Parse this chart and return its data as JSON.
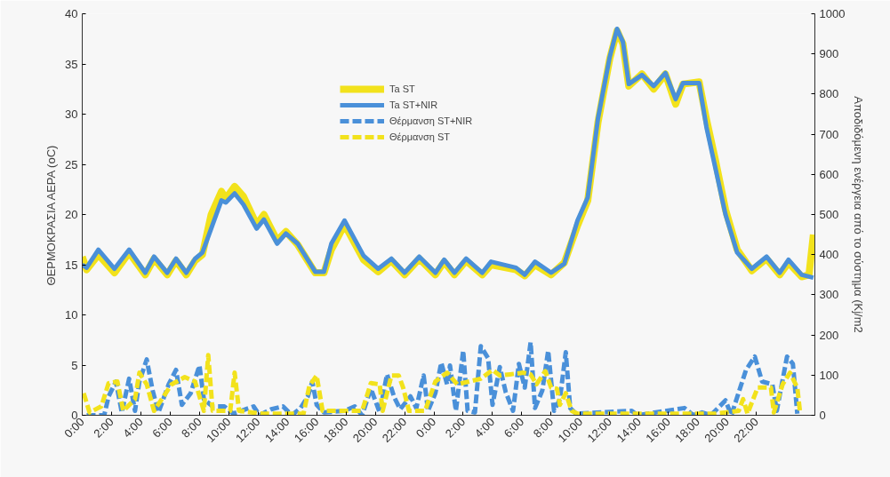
{
  "chart_data": {
    "type": "line",
    "ylabel": "ΘΕΡΜΟΚΡΑΣΙΑ ΑΕΡΑ (oC)",
    "y2label": "Αποδιδόμενη ενέργεια από το σύστημα (Kj/m2",
    "xlim": [
      "2000-01-01T00:00",
      "2000-01-03T02:00"
    ],
    "ylim": [
      0,
      40
    ],
    "y2lim": [
      0,
      1000
    ],
    "xticks": [
      {
        "value": "2000-01-01T00:00",
        "label": "0:00"
      },
      {
        "value": "2000-01-01T02:00",
        "label": "2:00"
      },
      {
        "value": "2000-01-01T04:00",
        "label": "4:00"
      },
      {
        "value": "2000-01-01T06:00",
        "label": "6:00"
      },
      {
        "value": "2000-01-01T08:00",
        "label": "8:00"
      },
      {
        "value": "2000-01-01T10:00",
        "label": "10:00"
      },
      {
        "value": "2000-01-01T12:00",
        "label": "12:00"
      },
      {
        "value": "2000-01-01T14:00",
        "label": "14:00"
      },
      {
        "value": "2000-01-01T16:00",
        "label": "16:00"
      },
      {
        "value": "2000-01-01T18:00",
        "label": "18:00"
      },
      {
        "value": "2000-01-01T20:00",
        "label": "20:00"
      },
      {
        "value": "2000-01-01T22:00",
        "label": "22:00"
      },
      {
        "value": "2000-01-02T00:00",
        "label": "0:00"
      },
      {
        "value": "2000-01-02T02:00",
        "label": "2:00"
      },
      {
        "value": "2000-01-02T04:00",
        "label": "4:00"
      },
      {
        "value": "2000-01-02T06:00",
        "label": "6:00"
      },
      {
        "value": "2000-01-02T08:00",
        "label": "8:00"
      },
      {
        "value": "2000-01-02T10:00",
        "label": "10:00"
      },
      {
        "value": "2000-01-02T12:00",
        "label": "12:00"
      },
      {
        "value": "2000-01-02T14:00",
        "label": "14:00"
      },
      {
        "value": "2000-01-02T16:00",
        "label": "16:00"
      },
      {
        "value": "2000-01-02T18:00",
        "label": "18:00"
      },
      {
        "value": "2000-01-02T20:00",
        "label": "20:00"
      },
      {
        "value": "2000-01-02T22:00",
        "label": "22:00"
      }
    ],
    "yticks": [
      0,
      5,
      10,
      15,
      20,
      25,
      30,
      35,
      40
    ],
    "y2ticks": [
      0,
      100,
      200,
      300,
      400,
      500,
      600,
      700,
      800,
      900,
      1000
    ],
    "grid": false,
    "legend": "top",
    "series": [
      {
        "name": "Ta ST",
        "color": "#f2e21c",
        "line_style": "solid",
        "x": [
          "2000-01-01T00:00",
          "2000-01-01T00:18",
          "2000-01-01T01:06",
          "2000-01-01T02:12",
          "2000-01-01T03:12",
          "2000-01-01T04:18",
          "2000-01-01T04:54",
          "2000-01-01T05:48",
          "2000-01-01T06:24",
          "2000-01-01T07:06",
          "2000-01-01T07:42",
          "2000-01-01T08:12",
          "2000-01-01T08:48",
          "2000-01-01T09:30",
          "2000-01-01T09:48",
          "2000-01-01T10:24",
          "2000-01-01T11:00",
          "2000-01-01T11:54",
          "2000-01-01T12:24",
          "2000-01-01T13:18",
          "2000-01-01T13:54",
          "2000-01-01T14:42",
          "2000-01-01T15:54",
          "2000-01-01T16:30",
          "2000-01-01T17:00",
          "2000-01-01T17:54",
          "2000-01-01T19:12",
          "2000-01-01T20:12",
          "2000-01-01T21:06",
          "2000-01-01T22:00",
          "2000-01-01T23:00",
          "2000-01-02T00:06",
          "2000-01-02T00:42",
          "2000-01-02T01:24",
          "2000-01-02T02:12",
          "2000-01-02T03:18",
          "2000-01-02T03:54",
          "2000-01-02T05:36",
          "2000-01-02T06:12",
          "2000-01-02T06:54",
          "2000-01-02T08:00",
          "2000-01-02T08:54",
          "2000-01-02T09:48",
          "2000-01-02T10:30",
          "2000-01-02T11:12",
          "2000-01-02T12:00",
          "2000-01-02T12:30",
          "2000-01-02T12:54",
          "2000-01-02T13:18",
          "2000-01-02T14:12",
          "2000-01-02T15:00",
          "2000-01-02T15:48",
          "2000-01-02T16:30",
          "2000-01-02T17:00",
          "2000-01-02T18:06",
          "2000-01-02T18:36",
          "2000-01-02T19:12",
          "2000-01-02T19:54",
          "2000-01-02T20:42",
          "2000-01-02T21:42",
          "2000-01-02T22:42",
          "2000-01-02T23:36",
          "2000-01-03T00:12",
          "2000-01-03T01:06",
          "2000-01-03T01:36",
          "2000-01-03T01:54"
        ],
        "values": [
          15.8,
          14.5,
          16.0,
          14.2,
          16.2,
          14.0,
          15.6,
          14.0,
          15.4,
          14.0,
          15.4,
          16.0,
          20.0,
          22.3,
          21.6,
          22.8,
          21.8,
          19.0,
          20.0,
          17.4,
          18.3,
          17.0,
          14.2,
          14.2,
          16.5,
          19.0,
          15.5,
          14.3,
          15.4,
          14.0,
          15.6,
          14.0,
          15.3,
          14.0,
          15.4,
          14.0,
          15.0,
          14.5,
          13.9,
          15.0,
          14.0,
          15.2,
          18.9,
          21.4,
          29.2,
          35.5,
          38.3,
          37.0,
          32.8,
          34.0,
          32.5,
          34.0,
          31.0,
          33.0,
          33.2,
          29.5,
          25.5,
          20.5,
          16.5,
          14.4,
          15.6,
          14.0,
          15.2,
          13.8,
          14.0,
          18.0
        ]
      },
      {
        "name": "Ta ST+NIR",
        "color": "#4a90d9",
        "line_style": "solid",
        "x": [
          "2000-01-01T00:00",
          "2000-01-01T00:18",
          "2000-01-01T01:06",
          "2000-01-01T02:12",
          "2000-01-01T03:12",
          "2000-01-01T04:18",
          "2000-01-01T04:54",
          "2000-01-01T05:48",
          "2000-01-01T06:24",
          "2000-01-01T07:06",
          "2000-01-01T07:42",
          "2000-01-01T08:12",
          "2000-01-01T08:48",
          "2000-01-01T09:30",
          "2000-01-01T09:48",
          "2000-01-01T10:24",
          "2000-01-01T11:00",
          "2000-01-01T11:54",
          "2000-01-01T12:24",
          "2000-01-01T13:18",
          "2000-01-01T13:54",
          "2000-01-01T14:42",
          "2000-01-01T15:54",
          "2000-01-01T16:30",
          "2000-01-01T17:00",
          "2000-01-01T17:54",
          "2000-01-01T19:12",
          "2000-01-01T20:12",
          "2000-01-01T21:06",
          "2000-01-01T22:00",
          "2000-01-01T23:00",
          "2000-01-02T00:06",
          "2000-01-02T00:42",
          "2000-01-02T01:24",
          "2000-01-02T02:12",
          "2000-01-02T03:18",
          "2000-01-02T03:54",
          "2000-01-02T05:36",
          "2000-01-02T06:12",
          "2000-01-02T06:54",
          "2000-01-02T08:00",
          "2000-01-02T08:54",
          "2000-01-02T09:48",
          "2000-01-02T10:30",
          "2000-01-02T11:12",
          "2000-01-02T12:00",
          "2000-01-02T12:30",
          "2000-01-02T12:54",
          "2000-01-02T13:18",
          "2000-01-02T14:12",
          "2000-01-02T15:00",
          "2000-01-02T15:48",
          "2000-01-02T16:30",
          "2000-01-02T17:00",
          "2000-01-02T18:06",
          "2000-01-02T18:36",
          "2000-01-02T19:12",
          "2000-01-02T19:54",
          "2000-01-02T20:42",
          "2000-01-02T21:42",
          "2000-01-02T22:42",
          "2000-01-02T23:36",
          "2000-01-03T00:12",
          "2000-01-03T01:06",
          "2000-01-03T01:54"
        ],
        "values": [
          15.0,
          14.7,
          16.5,
          14.6,
          16.5,
          14.2,
          15.8,
          14.2,
          15.6,
          14.2,
          15.6,
          16.2,
          18.6,
          21.4,
          21.2,
          22.1,
          21.0,
          18.6,
          19.5,
          17.1,
          18.1,
          17.1,
          14.3,
          14.3,
          17.1,
          19.4,
          15.9,
          14.6,
          15.6,
          14.2,
          15.8,
          14.2,
          15.5,
          14.2,
          15.6,
          14.2,
          15.3,
          14.7,
          14.0,
          15.3,
          14.2,
          15.1,
          19.4,
          21.7,
          29.6,
          35.7,
          38.5,
          37.2,
          33.0,
          33.9,
          32.8,
          34.1,
          31.5,
          33.1,
          33.1,
          28.7,
          24.7,
          20.0,
          16.2,
          14.6,
          15.8,
          14.2,
          15.5,
          14.0,
          13.7
        ]
      },
      {
        "name": "Θέρμανση ST+NIR",
        "color": "#4a90d9",
        "line_style": "dashed",
        "axis": "y2",
        "x": [
          "2000-01-01T00:18",
          "2000-01-01T01:30",
          "2000-01-01T01:48",
          "2000-01-01T02:18",
          "2000-01-01T02:42",
          "2000-01-01T03:12",
          "2000-01-01T03:36",
          "2000-01-01T03:54",
          "2000-01-01T04:24",
          "2000-01-01T04:48",
          "2000-01-01T05:12",
          "2000-01-01T05:54",
          "2000-01-01T06:24",
          "2000-01-01T06:48",
          "2000-01-01T07:24",
          "2000-01-01T08:00",
          "2000-01-01T08:18",
          "2000-01-01T08:54",
          "2000-01-01T09:42",
          "2000-01-01T10:18",
          "2000-01-01T11:42",
          "2000-01-01T12:06",
          "2000-01-01T12:54",
          "2000-01-01T13:42",
          "2000-01-01T14:18",
          "2000-01-01T14:54",
          "2000-01-01T15:24",
          "2000-01-01T15:42",
          "2000-01-01T16:00",
          "2000-01-01T16:30",
          "2000-01-01T17:54",
          "2000-01-01T18:36",
          "2000-01-01T19:06",
          "2000-01-01T19:42",
          "2000-01-01T20:18",
          "2000-01-01T20:48",
          "2000-01-01T21:18",
          "2000-01-01T21:42",
          "2000-01-01T22:24",
          "2000-01-01T22:48",
          "2000-01-01T23:18",
          "2000-01-01T23:36",
          "2000-01-02T00:06",
          "2000-01-02T00:30",
          "2000-01-02T00:54",
          "2000-01-02T01:06",
          "2000-01-02T01:30",
          "2000-01-02T02:00",
          "2000-01-02T02:18",
          "2000-01-02T02:48",
          "2000-01-02T03:12",
          "2000-01-02T03:42",
          "2000-01-02T04:00",
          "2000-01-02T04:30",
          "2000-01-02T04:54",
          "2000-01-02T05:24",
          "2000-01-02T05:48",
          "2000-01-02T06:12",
          "2000-01-02T06:36",
          "2000-01-02T06:54",
          "2000-01-02T07:24",
          "2000-01-02T07:48",
          "2000-01-02T08:12",
          "2000-01-02T08:36",
          "2000-01-02T09:00",
          "2000-01-02T09:18",
          "2000-01-02T09:42",
          "2000-01-02T13:30",
          "2000-01-02T13:54",
          "2000-01-02T17:06",
          "2000-01-02T17:42",
          "2000-01-02T18:18",
          "2000-01-02T18:54",
          "2000-01-02T19:54",
          "2000-01-02T20:18",
          "2000-01-02T21:18",
          "2000-01-02T21:54",
          "2000-01-02T22:24",
          "2000-01-02T23:06",
          "2000-01-02T23:24",
          "2000-01-03T00:06",
          "2000-01-03T00:30",
          "2000-01-03T00:48"
        ],
        "values": [
          0,
          0,
          47,
          84,
          7,
          91,
          11,
          84,
          139,
          62,
          7,
          77,
          113,
          26,
          55,
          124,
          40,
          22,
          22,
          4,
          22,
          0,
          15,
          22,
          0,
          18,
          47,
          84,
          26,
          7,
          11,
          22,
          0,
          66,
          7,
          102,
          44,
          15,
          47,
          18,
          99,
          11,
          55,
          131,
          77,
          124,
          11,
          161,
          11,
          7,
          172,
          142,
          26,
          120,
          58,
          11,
          128,
          69,
          182,
          18,
          62,
          161,
          11,
          40,
          157,
          18,
          4,
          11,
          0,
          18,
          0,
          7,
          0,
          37,
          0,
          113,
          146,
          84,
          77,
          11,
          146,
          128,
          4
        ]
      },
      {
        "name": "Θέρμανση ST",
        "color": "#f2e21c",
        "line_style": "dashed",
        "axis": "y2",
        "x": [
          "2000-01-01T00:06",
          "2000-01-01T00:30",
          "2000-01-01T01:18",
          "2000-01-01T01:48",
          "2000-01-01T02:24",
          "2000-01-01T02:48",
          "2000-01-01T03:36",
          "2000-01-01T03:54",
          "2000-01-01T04:24",
          "2000-01-01T04:54",
          "2000-01-01T06:06",
          "2000-01-01T07:00",
          "2000-01-01T07:42",
          "2000-01-01T08:18",
          "2000-01-01T08:36",
          "2000-01-01T08:54",
          "2000-01-01T10:06",
          "2000-01-01T10:24",
          "2000-01-01T10:42",
          "2000-01-01T12:18",
          "2000-01-01T15:06",
          "2000-01-01T15:30",
          "2000-01-01T16:00",
          "2000-01-01T16:24",
          "2000-01-01T19:06",
          "2000-01-01T19:42",
          "2000-01-01T20:18",
          "2000-01-01T20:30",
          "2000-01-01T21:06",
          "2000-01-01T21:36",
          "2000-01-01T21:54",
          "2000-01-01T22:18",
          "2000-01-01T23:24",
          "2000-01-02T00:06",
          "2000-01-02T00:54",
          "2000-01-02T01:36",
          "2000-01-02T02:24",
          "2000-01-02T03:12",
          "2000-01-02T04:00",
          "2000-01-02T04:30",
          "2000-01-02T05:12",
          "2000-01-02T06:06",
          "2000-01-02T06:36",
          "2000-01-02T07:00",
          "2000-01-02T07:36",
          "2000-01-02T08:00",
          "2000-01-02T08:24",
          "2000-01-02T08:36",
          "2000-01-02T09:00",
          "2000-01-02T09:24",
          "2000-01-02T09:48",
          "2000-01-02T19:12",
          "2000-01-02T20:48",
          "2000-01-02T21:06",
          "2000-01-02T21:24",
          "2000-01-02T22:06",
          "2000-01-02T23:00",
          "2000-01-02T23:12",
          "2000-01-02T23:48",
          "2000-01-03T00:18",
          "2000-01-03T00:48",
          "2000-01-03T01:00"
        ],
        "values": [
          55,
          7,
          22,
          80,
          84,
          11,
          40,
          106,
          77,
          11,
          77,
          95,
          84,
          11,
          150,
          11,
          11,
          106,
          11,
          4,
          4,
          73,
          99,
          11,
          11,
          80,
          77,
          11,
          99,
          99,
          69,
          11,
          11,
          84,
          106,
          77,
          84,
          91,
          113,
          99,
          102,
          106,
          102,
          77,
          110,
          69,
          66,
          26,
          55,
          11,
          4,
          4,
          11,
          40,
          4,
          69,
          69,
          7,
          77,
          106,
          69,
          4
        ]
      }
    ]
  }
}
